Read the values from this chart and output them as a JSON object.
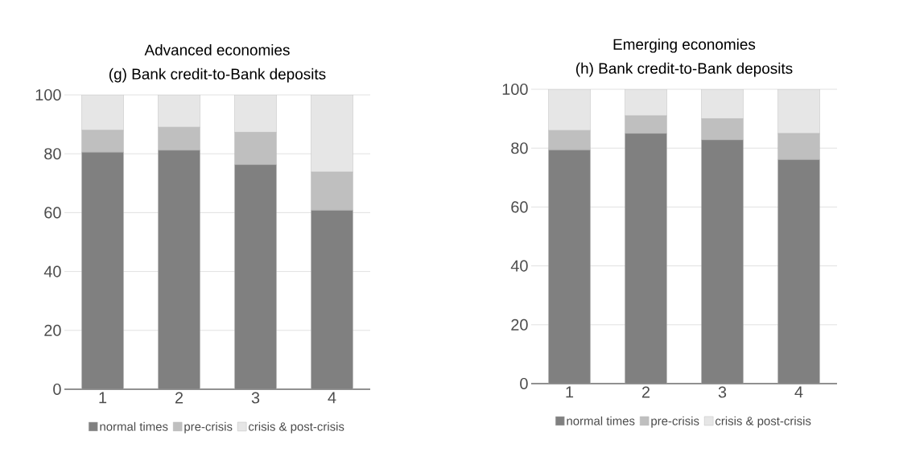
{
  "chart_data": [
    {
      "type": "bar",
      "title": "Advanced economies",
      "subtitle": "(g) Bank credit-to-Bank deposits",
      "categories": [
        "1",
        "2",
        "3",
        "4"
      ],
      "stacked": true,
      "ylim": [
        0,
        100
      ],
      "yticks": [
        0,
        20,
        40,
        60,
        80,
        100
      ],
      "grid": "y",
      "legend": "bottom",
      "series": [
        {
          "name": "normal times",
          "color": "#808080",
          "values": [
            80.5,
            81.2,
            76.3,
            60.8
          ]
        },
        {
          "name": "pre-crisis",
          "color": "#bfbfbf",
          "values": [
            7.5,
            7.8,
            11,
            13
          ]
        },
        {
          "name": "crisis & post-crisis",
          "color": "#e6e6e6",
          "values": [
            12,
            11,
            12.7,
            26.2
          ]
        }
      ]
    },
    {
      "type": "bar",
      "title": "Emerging economies",
      "subtitle": "(h) Bank credit-to-Bank deposits",
      "categories": [
        "1",
        "2",
        "3",
        "4"
      ],
      "stacked": true,
      "ylim": [
        0,
        100
      ],
      "yticks": [
        0,
        20,
        40,
        60,
        80,
        100
      ],
      "grid": "y",
      "legend": "bottom",
      "series": [
        {
          "name": "normal times",
          "color": "#808080",
          "values": [
            79.4,
            85,
            82.8,
            76.1
          ]
        },
        {
          "name": "pre-crisis",
          "color": "#bfbfbf",
          "values": [
            6.6,
            6,
            7.2,
            8.9
          ]
        },
        {
          "name": "crisis & post-crisis",
          "color": "#e6e6e6",
          "values": [
            14,
            9,
            10,
            15
          ]
        }
      ]
    }
  ]
}
